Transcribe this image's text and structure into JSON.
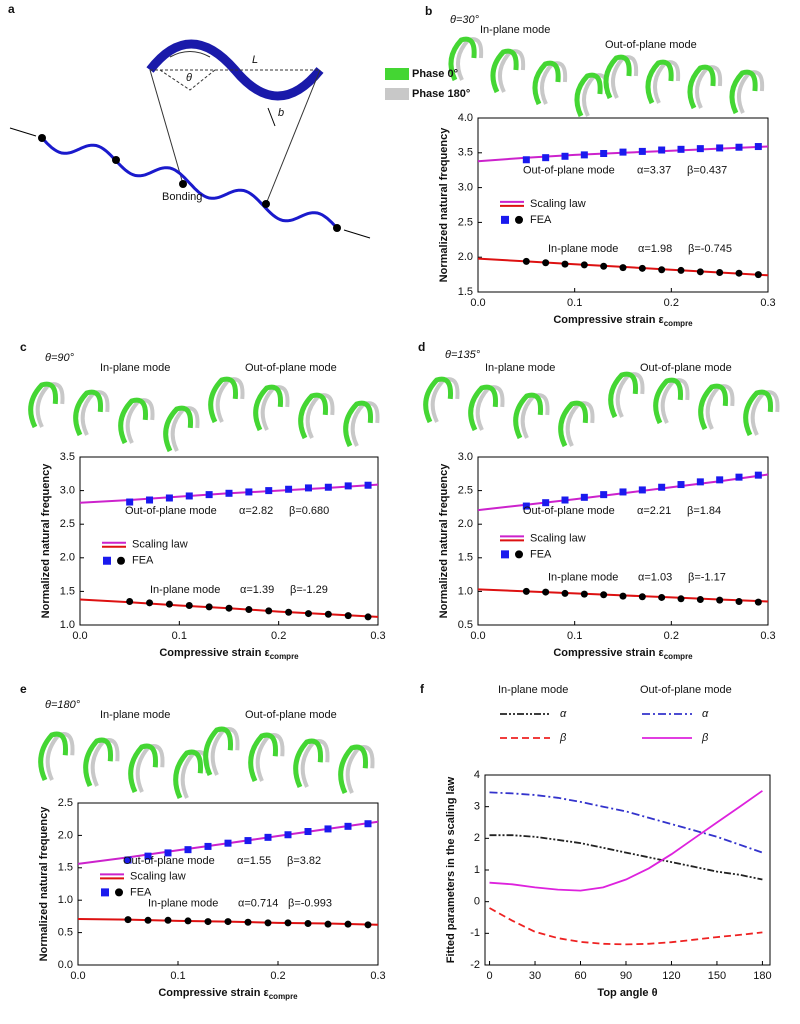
{
  "figure": {
    "panel_a": {
      "label": "a",
      "L": "L",
      "theta": "θ",
      "b": "b",
      "bonding": "Bonding"
    }
  },
  "chart_data": [
    {
      "type": "scaling",
      "panel": "b",
      "angle": "θ=30°",
      "mode_labels": [
        "In-plane mode",
        "Out-of-plane mode"
      ],
      "phase_legend": [
        {
          "name": "Phase 0°",
          "color": "#44d633"
        },
        {
          "name": "Phase 180°",
          "color": "#c8c8c8"
        }
      ],
      "xlabel": "Compressive strain ε",
      "xlabel_sub": "compre",
      "ylabel": "Normalized natural frequency",
      "xlim": [
        0,
        0.3
      ],
      "xticks": [
        {
          "value": 0,
          "label": "0.0"
        },
        0.1,
        0.2,
        0.3
      ],
      "ylim": [
        1.5,
        4.0
      ],
      "yticks": [
        1.5,
        {
          "value": 2,
          "label": "2.0"
        },
        2.5,
        {
          "value": 3,
          "label": "3.0"
        },
        3.5,
        {
          "value": 4,
          "label": "4.0"
        }
      ],
      "lines": {
        "name": "Scaling law",
        "x": [
          0,
          0.05,
          0.1,
          0.15,
          0.2,
          0.25,
          0.3
        ],
        "series": [
          {
            "color": "#cc22cc",
            "values": [
              3.38,
              3.43,
              3.47,
              3.5,
              3.53,
              3.56,
              3.59
            ]
          },
          {
            "color": "#dd1111",
            "values": [
              1.98,
              1.94,
              1.9,
              1.86,
              1.82,
              1.78,
              1.74
            ]
          }
        ]
      },
      "points": {
        "name": "FEA",
        "x": [
          0.05,
          0.07,
          0.09,
          0.11,
          0.13,
          0.15,
          0.17,
          0.19,
          0.21,
          0.23,
          0.25,
          0.27,
          0.29
        ],
        "series": [
          {
            "color": "#1a1aee",
            "marker": "square",
            "values": [
              3.4,
              3.43,
              3.45,
              3.47,
              3.49,
              3.51,
              3.52,
              3.54,
              3.55,
              3.56,
              3.57,
              3.58,
              3.59
            ]
          },
          {
            "color": "#000000",
            "marker": "circle",
            "values": [
              1.94,
              1.92,
              1.9,
              1.89,
              1.87,
              1.85,
              1.84,
              1.82,
              1.81,
              1.79,
              1.78,
              1.77,
              1.75
            ]
          }
        ]
      },
      "annotations": [
        {
          "mode": "Out-of-plane mode",
          "alpha": "α=3.37",
          "beta": "β=0.437"
        },
        {
          "mode": "In-plane mode",
          "alpha": "α=1.98",
          "beta": "β=-0.745"
        }
      ]
    },
    {
      "type": "scaling",
      "panel": "c",
      "angle": "θ=90°",
      "mode_labels": [
        "In-plane mode",
        "Out-of-plane mode"
      ],
      "xlabel": "Compressive strain ε",
      "xlabel_sub": "compre",
      "ylabel": "Normalized natural frequency",
      "xlim": [
        0,
        0.3
      ],
      "xticks": [
        {
          "value": 0,
          "label": "0.0"
        },
        0.1,
        0.2,
        0.3
      ],
      "ylim": [
        1.0,
        3.5
      ],
      "yticks": [
        {
          "value": 1,
          "label": "1.0"
        },
        1.5,
        {
          "value": 2,
          "label": "2.0"
        },
        2.5,
        {
          "value": 3,
          "label": "3.0"
        },
        3.5
      ],
      "lines": {
        "name": "Scaling law",
        "x": [
          0,
          0.05,
          0.1,
          0.15,
          0.2,
          0.25,
          0.3
        ],
        "series": [
          {
            "color": "#cc22cc",
            "values": [
              2.82,
              2.86,
              2.91,
              2.96,
              3.0,
              3.04,
              3.09
            ]
          },
          {
            "color": "#dd1111",
            "values": [
              1.38,
              1.34,
              1.29,
              1.25,
              1.2,
              1.16,
              1.12
            ]
          }
        ]
      },
      "points": {
        "name": "FEA",
        "x": [
          0.05,
          0.07,
          0.09,
          0.11,
          0.13,
          0.15,
          0.17,
          0.19,
          0.21,
          0.23,
          0.25,
          0.27,
          0.29
        ],
        "series": [
          {
            "color": "#1a1aee",
            "marker": "square",
            "values": [
              2.83,
              2.86,
              2.89,
              2.92,
              2.94,
              2.96,
              2.98,
              3.0,
              3.02,
              3.04,
              3.05,
              3.07,
              3.08
            ]
          },
          {
            "color": "#000000",
            "marker": "circle",
            "values": [
              1.35,
              1.33,
              1.31,
              1.29,
              1.27,
              1.25,
              1.23,
              1.21,
              1.19,
              1.17,
              1.16,
              1.14,
              1.12
            ]
          }
        ]
      },
      "annotations": [
        {
          "mode": "Out-of-plane mode",
          "alpha": "α=2.82",
          "beta": "β=0.680"
        },
        {
          "mode": "In-plane mode",
          "alpha": "α=1.39",
          "beta": "β=-1.29"
        }
      ]
    },
    {
      "type": "scaling",
      "panel": "d",
      "angle": "θ=135°",
      "mode_labels": [
        "In-plane mode",
        "Out-of-plane mode"
      ],
      "xlabel": "Compressive strain ε",
      "xlabel_sub": "compre",
      "ylabel": "Normalized natural frequency",
      "xlim": [
        0,
        0.3
      ],
      "xticks": [
        {
          "value": 0,
          "label": "0.0"
        },
        0.1,
        0.2,
        0.3
      ],
      "ylim": [
        0.5,
        3.0
      ],
      "yticks": [
        0.5,
        {
          "value": 1,
          "label": "1.0"
        },
        1.5,
        {
          "value": 2,
          "label": "2.0"
        },
        2.5,
        {
          "value": 3,
          "label": "3.0"
        }
      ],
      "lines": {
        "name": "Scaling law",
        "x": [
          0,
          0.05,
          0.1,
          0.15,
          0.2,
          0.25,
          0.3
        ],
        "series": [
          {
            "color": "#cc22cc",
            "values": [
              2.21,
              2.29,
              2.37,
              2.46,
              2.55,
              2.64,
              2.74
            ]
          },
          {
            "color": "#dd1111",
            "values": [
              1.03,
              1.0,
              0.97,
              0.94,
              0.91,
              0.88,
              0.85
            ]
          }
        ]
      },
      "points": {
        "name": "FEA",
        "x": [
          0.05,
          0.07,
          0.09,
          0.11,
          0.13,
          0.15,
          0.17,
          0.19,
          0.21,
          0.23,
          0.25,
          0.27,
          0.29
        ],
        "series": [
          {
            "color": "#1a1aee",
            "marker": "square",
            "values": [
              2.27,
              2.32,
              2.36,
              2.4,
              2.44,
              2.48,
              2.51,
              2.55,
              2.59,
              2.63,
              2.66,
              2.7,
              2.73
            ]
          },
          {
            "color": "#000000",
            "marker": "circle",
            "values": [
              1.0,
              0.99,
              0.97,
              0.96,
              0.95,
              0.93,
              0.92,
              0.91,
              0.89,
              0.88,
              0.87,
              0.85,
              0.84
            ]
          }
        ]
      },
      "annotations": [
        {
          "mode": "Out-of-plane mode",
          "alpha": "α=2.21",
          "beta": "β=1.84"
        },
        {
          "mode": "In-plane mode",
          "alpha": "α=1.03",
          "beta": "β=-1.17"
        }
      ]
    },
    {
      "type": "scaling",
      "panel": "e",
      "angle": "θ=180°",
      "mode_labels": [
        "In-plane mode",
        "Out-of-plane mode"
      ],
      "xlabel": "Compressive strain ε",
      "xlabel_sub": "compre",
      "ylabel": "Normalized natural frequency",
      "xlim": [
        0,
        0.3
      ],
      "xticks": [
        {
          "value": 0,
          "label": "0.0"
        },
        0.1,
        0.2,
        0.3
      ],
      "ylim": [
        0.0,
        2.5
      ],
      "yticks": [
        {
          "value": 0,
          "label": "0.0"
        },
        0.5,
        {
          "value": 1,
          "label": "1.0"
        },
        1.5,
        {
          "value": 2,
          "label": "2.0"
        },
        2.5
      ],
      "lines": {
        "name": "Scaling law",
        "x": [
          0,
          0.05,
          0.1,
          0.15,
          0.2,
          0.25,
          0.3
        ],
        "series": [
          {
            "color": "#cc22cc",
            "values": [
              1.56,
              1.66,
              1.77,
              1.88,
              1.99,
              2.1,
              2.21
            ]
          },
          {
            "color": "#dd1111",
            "values": [
              0.71,
              0.7,
              0.68,
              0.67,
              0.65,
              0.64,
              0.62
            ]
          }
        ]
      },
      "points": {
        "name": "FEA",
        "x": [
          0.05,
          0.07,
          0.09,
          0.11,
          0.13,
          0.15,
          0.17,
          0.19,
          0.21,
          0.23,
          0.25,
          0.27,
          0.29
        ],
        "series": [
          {
            "color": "#1a1aee",
            "marker": "square",
            "values": [
              1.62,
              1.68,
              1.73,
              1.78,
              1.83,
              1.88,
              1.92,
              1.97,
              2.01,
              2.06,
              2.1,
              2.14,
              2.18
            ]
          },
          {
            "color": "#000000",
            "marker": "circle",
            "values": [
              0.7,
              0.69,
              0.69,
              0.68,
              0.67,
              0.67,
              0.66,
              0.65,
              0.65,
              0.64,
              0.63,
              0.63,
              0.62
            ]
          }
        ]
      },
      "annotations": [
        {
          "mode": "Out-of-plane mode",
          "alpha": "α=1.55",
          "beta": "β=3.82"
        },
        {
          "mode": "In-plane mode",
          "alpha": "α=0.714",
          "beta": "β=-0.993"
        }
      ]
    },
    {
      "type": "line",
      "panel": "f",
      "xlabel": "Top angle θ",
      "ylabel": "Fitted parameters in the scaling law",
      "x": [
        0,
        15,
        30,
        45,
        60,
        75,
        90,
        105,
        120,
        135,
        150,
        165,
        180
      ],
      "xlim": [
        -3,
        185
      ],
      "xticks": [
        0,
        30,
        60,
        90,
        120,
        150,
        180
      ],
      "ylim": [
        -2,
        4
      ],
      "yticks": [
        -2,
        -1,
        0,
        1,
        2,
        3,
        4
      ],
      "groups": [
        {
          "title": "In-plane mode",
          "series": [
            {
              "name": "α",
              "color": "#222222",
              "dash": "7,2,2,2,2,2",
              "values": [
                2.1,
                2.1,
                2.05,
                1.95,
                1.85,
                1.7,
                1.55,
                1.4,
                1.25,
                1.1,
                0.95,
                0.85,
                0.7
              ]
            },
            {
              "name": "β",
              "color": "#ee2222",
              "dash": "7,4",
              "values": [
                -0.2,
                -0.6,
                -0.95,
                -1.15,
                -1.27,
                -1.33,
                -1.35,
                -1.33,
                -1.28,
                -1.2,
                -1.12,
                -1.05,
                -0.97
              ]
            }
          ]
        },
        {
          "title": "Out-of-plane mode",
          "series": [
            {
              "name": "α",
              "color": "#3333cc",
              "dash": "8,3,2,3",
              "values": [
                3.45,
                3.42,
                3.37,
                3.28,
                3.15,
                3.0,
                2.85,
                2.65,
                2.45,
                2.25,
                2.05,
                1.8,
                1.55
              ]
            },
            {
              "name": "β",
              "color": "#dd22dd",
              "dash": "none",
              "values": [
                0.6,
                0.55,
                0.45,
                0.38,
                0.35,
                0.45,
                0.7,
                1.05,
                1.5,
                2.0,
                2.5,
                3.0,
                3.5
              ]
            }
          ]
        }
      ]
    }
  ]
}
